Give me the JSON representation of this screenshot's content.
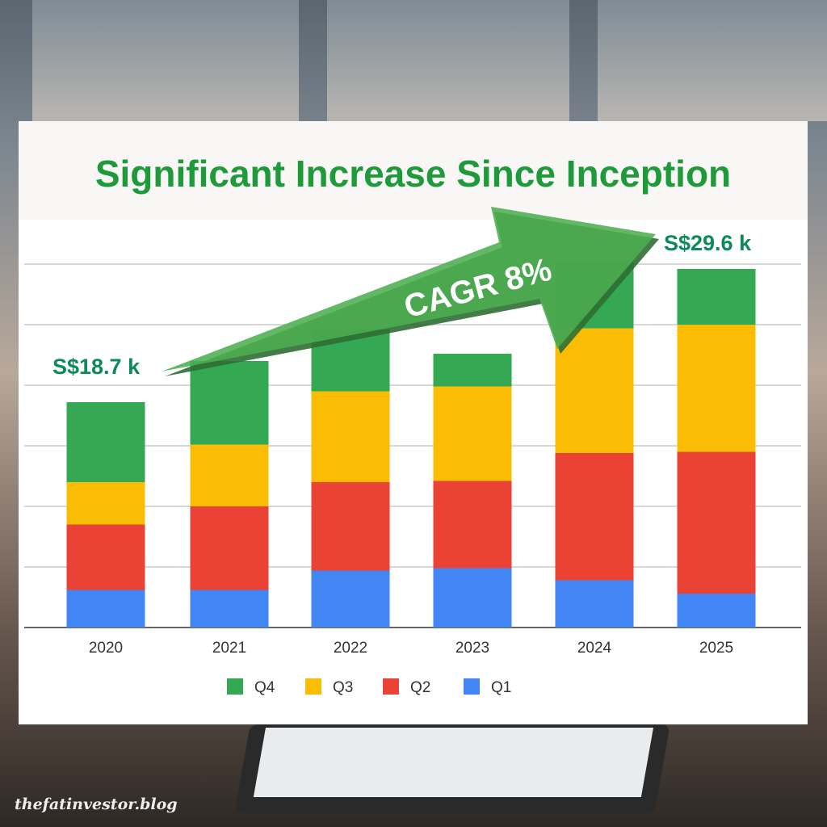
{
  "chart_data": {
    "type": "bar",
    "stacked": true,
    "title": "Significant Increase Since Inception",
    "categories": [
      "2020",
      "2021",
      "2022",
      "2023",
      "2024",
      "2025"
    ],
    "series": [
      {
        "name": "Q1",
        "color": "#4285f4",
        "values": [
          3.1,
          3.1,
          4.7,
          4.9,
          3.9,
          2.8
        ]
      },
      {
        "name": "Q2",
        "color": "#ea4335",
        "values": [
          5.4,
          6.9,
          7.3,
          7.2,
          10.5,
          11.7
        ]
      },
      {
        "name": "Q3",
        "color": "#fbbc04",
        "values": [
          3.5,
          5.1,
          7.5,
          7.8,
          10.3,
          10.5
        ]
      },
      {
        "name": "Q4",
        "color": "#34a853",
        "values": [
          6.6,
          6.9,
          5.1,
          2.7,
          5.5,
          4.6
        ]
      }
    ],
    "legend_order": [
      "Q4",
      "Q3",
      "Q2",
      "Q1"
    ],
    "legend_position": "bottom",
    "ylim": [
      0,
      30
    ],
    "grid": true,
    "annotations": {
      "start_label": "S$18.7 k",
      "end_label": "S$29.6 k",
      "arrow_label": "CAGR 8%"
    }
  },
  "watermark": "thefatinvestor.blog"
}
